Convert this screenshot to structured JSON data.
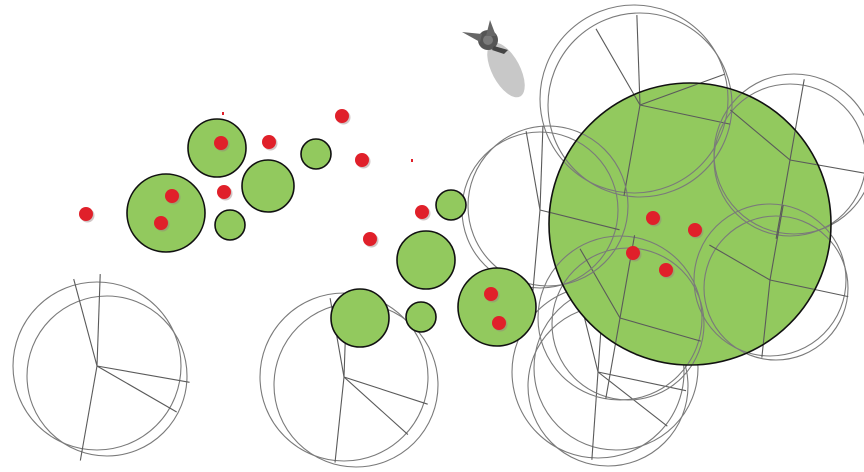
{
  "scene": {
    "background_color": "#ffffff",
    "green_fill": "#92c95e",
    "food_color": "#e0202a",
    "player_color": "#555555",
    "player_trail_color": "#c8c8c8",
    "ghost_stroke_color": "#7a7a7a"
  },
  "icons": {
    "player": "player-ship-icon"
  }
}
